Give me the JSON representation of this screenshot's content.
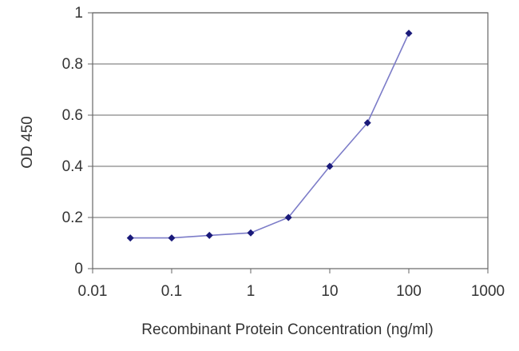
{
  "chart_data": {
    "type": "line",
    "title": "",
    "xlabel": "Recombinant Protein Concentration (ng/ml)",
    "ylabel": "OD 450",
    "x_scale": "log",
    "xlim": [
      0.01,
      1000
    ],
    "ylim": [
      0,
      1
    ],
    "x_ticks": [
      "0.01",
      "0.1",
      "1",
      "10",
      "100",
      "1000"
    ],
    "y_ticks": [
      "0",
      "0.2",
      "0.4",
      "0.6",
      "0.8",
      "1"
    ],
    "grid": "horizontal",
    "legend": "none",
    "series": [
      {
        "x": [
          0.03,
          0.1,
          0.3,
          1,
          3,
          10,
          30,
          100
        ],
        "y": [
          0.12,
          0.12,
          0.13,
          0.14,
          0.2,
          0.4,
          0.57,
          0.92
        ]
      }
    ],
    "colors": {
      "line": "#7c7cc8",
      "marker": "#1a1a7a",
      "grid": "#888888",
      "axis": "#666666"
    }
  }
}
